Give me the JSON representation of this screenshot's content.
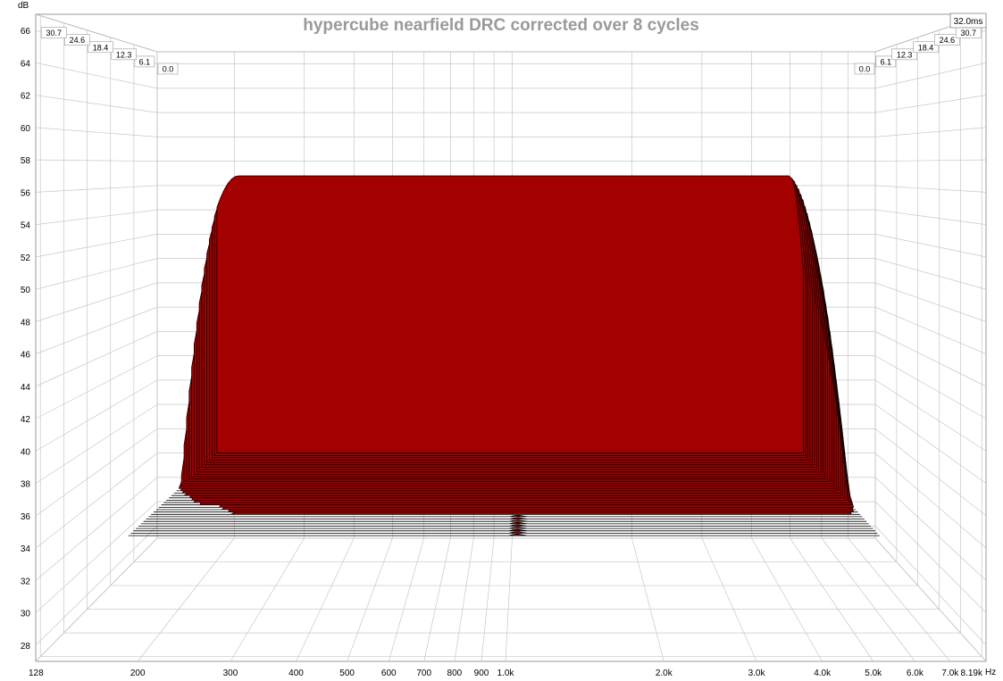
{
  "chart_data": {
    "type": "waterfall",
    "title": "hypercube nearfield DRC corrected over 8 cycles",
    "y_unit": "dB",
    "x_unit": "Hz",
    "time_end_label": "32.0ms",
    "x_range": [
      128,
      8190
    ],
    "y_range": [
      27,
      67
    ],
    "y_ticks": [
      "28",
      "30",
      "32",
      "34",
      "36",
      "38",
      "40",
      "42",
      "44",
      "46",
      "48",
      "50",
      "52",
      "54",
      "56",
      "58",
      "60",
      "62",
      "64",
      "66"
    ],
    "x_ticks": [
      {
        "f": 128,
        "label": "128"
      },
      {
        "f": 200,
        "label": "200"
      },
      {
        "f": 300,
        "label": "300"
      },
      {
        "f": 400,
        "label": "400"
      },
      {
        "f": 500,
        "label": "500"
      },
      {
        "f": 600,
        "label": "600"
      },
      {
        "f": 700,
        "label": "700"
      },
      {
        "f": 800,
        "label": "800"
      },
      {
        "f": 900,
        "label": "900"
      },
      {
        "f": 1000,
        "label": "1.0k"
      },
      {
        "f": 2000,
        "label": "2.0k"
      },
      {
        "f": 3000,
        "label": "3.0k"
      },
      {
        "f": 4000,
        "label": "4.0k"
      },
      {
        "f": 5000,
        "label": "5.0k"
      },
      {
        "f": 6000,
        "label": "6.0k"
      },
      {
        "f": 7000,
        "label": "7.0k"
      },
      {
        "f": 8190,
        "label": "8.19k"
      }
    ],
    "time_ticks": [
      "0.0",
      "6.1",
      "12.3",
      "18.4",
      "24.6",
      "30.7"
    ],
    "num_slices": 36,
    "fill_color": "#a30000",
    "line_color": "#000000",
    "grid": true,
    "base_level_db": 56.8,
    "floor_db": 34.5,
    "slice_levels_db": [
      56.8,
      56.6,
      56.3,
      56.0,
      55.6,
      55.2,
      54.7,
      54.2,
      53.6,
      53.0,
      52.3,
      51.6,
      50.8,
      50.0,
      49.1,
      48.2,
      47.2,
      46.2,
      45.1,
      44.0,
      42.9,
      41.7,
      40.5,
      39.3,
      38.1,
      36.9,
      35.7
    ]
  }
}
